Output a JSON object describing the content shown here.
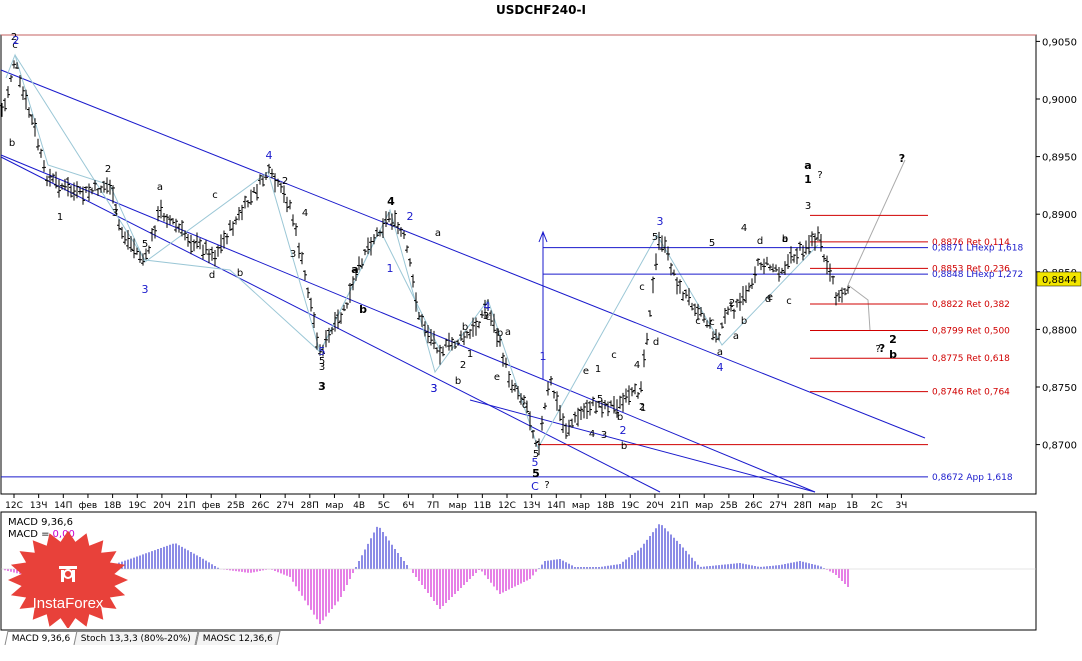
{
  "title": "USDCHF240-I",
  "price_axis": {
    "ticks": [
      "0,9050",
      "0,9000",
      "0,8950",
      "0,8900",
      "0,8850",
      "0,8800",
      "0,8750",
      "0,8700"
    ],
    "current": "0,8844"
  },
  "time_axis": [
    "12С",
    "13Ч",
    "14П",
    "фев",
    "18В",
    "19С",
    "20Ч",
    "21П",
    "фев",
    "25В",
    "26С",
    "27Ч",
    "28П",
    "мар",
    "4В",
    "5С",
    "6Ч",
    "7П",
    "мар",
    "11В",
    "12С",
    "13Ч",
    "14П",
    "мар",
    "18В",
    "19С",
    "20Ч",
    "21П",
    "мар",
    "25В",
    "26С",
    "27Ч",
    "28П",
    "мар",
    "1В",
    "2С",
    "3Ч"
  ],
  "levels": [
    {
      "label": "0,8876 Ret 0,114",
      "color": "#d00000"
    },
    {
      "label": "0,8871 LHexp 1,618",
      "color": "#1a1acc"
    },
    {
      "label": "0,8853 Ret 0,236",
      "color": "#d00000"
    },
    {
      "label": "0,8848 LHexp 1,272",
      "color": "#1a1acc"
    },
    {
      "label": "0,8822 Ret 0,382",
      "color": "#d00000"
    },
    {
      "label": "0,8799 Ret 0,500",
      "color": "#d00000"
    },
    {
      "label": "0,8775 Ret 0,618",
      "color": "#d00000"
    },
    {
      "label": "0,8746 Ret 0,764",
      "color": "#d00000"
    },
    {
      "label": "0,8672 App 1,618",
      "color": "#1a1acc"
    }
  ],
  "wave_labels": {
    "black": [
      "2",
      "c",
      "b",
      "1",
      "2",
      "3",
      "5",
      "a",
      "c",
      "d",
      "b",
      "2",
      "4",
      "3",
      "5",
      "3",
      "a",
      "b",
      "c",
      "d",
      "e",
      "a",
      "b",
      "1",
      "2",
      "3",
      "b",
      "c",
      "4",
      "5",
      "5",
      "5",
      "a",
      "c",
      "d",
      "b",
      "2",
      "1",
      "e",
      "c",
      "3",
      "b",
      "4",
      "1",
      "2",
      "a",
      "b",
      "c",
      "d",
      "e",
      "c",
      "4",
      "a",
      "3",
      "b",
      "d",
      "c",
      "5",
      "?",
      "?",
      "?"
    ],
    "blue": [
      "2",
      "3",
      "4",
      "5",
      "1",
      "2",
      "3",
      "4",
      "1",
      "3",
      "2",
      "3",
      "4",
      "5",
      "C"
    ],
    "bold": [
      "4",
      "5",
      "3",
      "a",
      "b",
      "a",
      "1",
      "2",
      "b"
    ]
  },
  "macd": {
    "label": "MACD 9,36,6",
    "signal_label": "MACD =",
    "signal_value": "0,00",
    "colors": {
      "positive": "#1a1acc",
      "negative": "#cc00cc"
    }
  },
  "tabs": [
    "MACD 9,36,6",
    "Stoch 13,3,3 (80%-20%)",
    "MAOSC 12,36,6"
  ],
  "logo": {
    "text": "InstaForex",
    "color": "#e8413a"
  },
  "colors": {
    "channel": "#1a1acc",
    "retracement": "#d00000",
    "wave_lines": "#9bc7d6",
    "projection": "#aaaaaa"
  },
  "chart_data": {
    "type": "candlestick",
    "title": "USDCHF240-I",
    "ylim": [
      0.8665,
      0.9062
    ],
    "series": [
      {
        "name": "USDCHF240-I",
        "approx_path": [
          {
            "x": "12С",
            "y": 0.8985
          },
          {
            "x": "13Ч",
            "y": 0.904
          },
          {
            "x": "14П",
            "y": 0.8945
          },
          {
            "x": "18В",
            "y": 0.892
          },
          {
            "x": "19С",
            "y": 0.887
          },
          {
            "x": "21П",
            "y": 0.8915
          },
          {
            "x": "25В",
            "y": 0.886
          },
          {
            "x": "26С",
            "y": 0.893
          },
          {
            "x": "27Ч",
            "y": 0.89
          },
          {
            "x": "28П",
            "y": 0.878
          },
          {
            "x": "4В",
            "y": 0.884
          },
          {
            "x": "5С",
            "y": 0.8895
          },
          {
            "x": "7П",
            "y": 0.882
          },
          {
            "x": "11В",
            "y": 0.877
          },
          {
            "x": "12С",
            "y": 0.881
          },
          {
            "x": "13Ч",
            "y": 0.87
          },
          {
            "x": "14П",
            "y": 0.875
          },
          {
            "x": "19С",
            "y": 0.873
          },
          {
            "x": "20Ч",
            "y": 0.8875
          },
          {
            "x": "25В",
            "y": 0.879
          },
          {
            "x": "26С",
            "y": 0.887
          },
          {
            "x": "28П",
            "y": 0.8898
          },
          {
            "x": "1В",
            "y": 0.8844
          }
        ]
      }
    ],
    "current_price": 0.8844
  }
}
